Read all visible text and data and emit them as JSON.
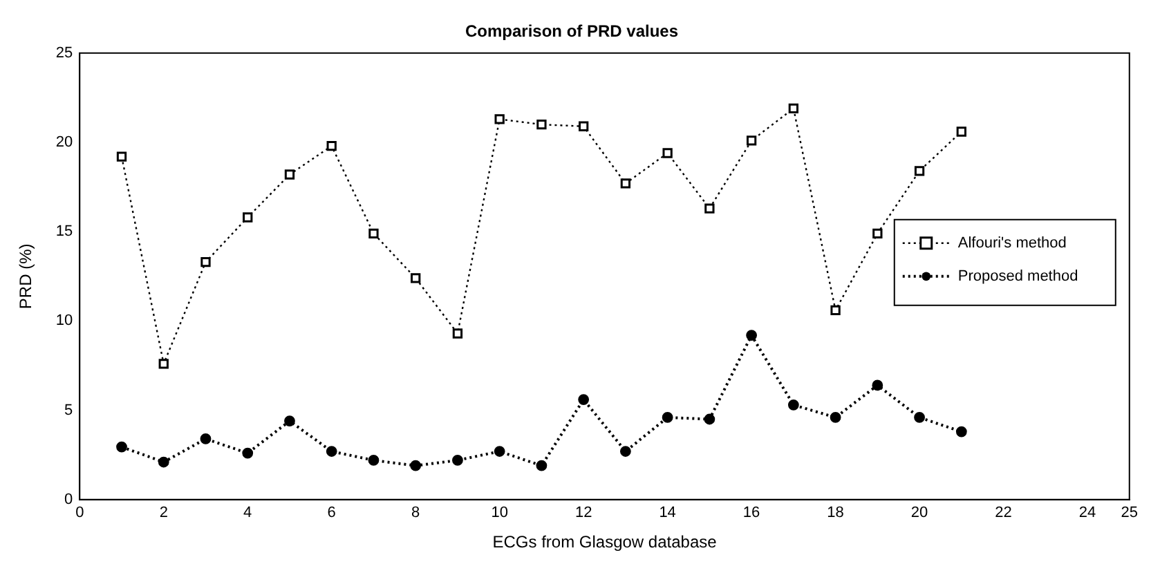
{
  "chart_data": {
    "type": "line",
    "title": "Comparison of PRD values",
    "xlabel": "ECGs from Glasgow database",
    "ylabel": "PRD (%)",
    "x": [
      1,
      2,
      3,
      4,
      5,
      6,
      7,
      8,
      9,
      10,
      11,
      12,
      13,
      14,
      15,
      16,
      17,
      18,
      19,
      20,
      21
    ],
    "series": [
      {
        "name": "Alfouri's method",
        "color": "#000000",
        "marker": "square",
        "line_style": "dotted",
        "values": [
          19.2,
          7.6,
          13.3,
          15.8,
          18.2,
          19.8,
          14.9,
          12.4,
          9.3,
          21.3,
          21.0,
          20.9,
          17.7,
          19.4,
          16.3,
          20.1,
          21.9,
          10.6,
          14.9,
          18.4,
          20.6
        ]
      },
      {
        "name": "Proposed method",
        "color": "#000000",
        "marker": "circle",
        "line_style": "dotted",
        "values": [
          2.95,
          2.1,
          3.4,
          2.6,
          4.4,
          2.7,
          2.2,
          1.9,
          2.2,
          2.7,
          1.9,
          5.6,
          2.7,
          4.6,
          4.5,
          9.2,
          5.3,
          4.6,
          6.4,
          4.6,
          3.8
        ]
      }
    ],
    "xlim": [
      0,
      25
    ],
    "xticks": [
      0,
      2,
      4,
      6,
      8,
      10,
      12,
      14,
      16,
      18,
      20,
      22,
      24,
      25
    ],
    "ylim": [
      0,
      25
    ],
    "yticks": [
      0,
      5,
      10,
      15,
      20,
      25
    ],
    "grid": false,
    "legend": "right"
  }
}
